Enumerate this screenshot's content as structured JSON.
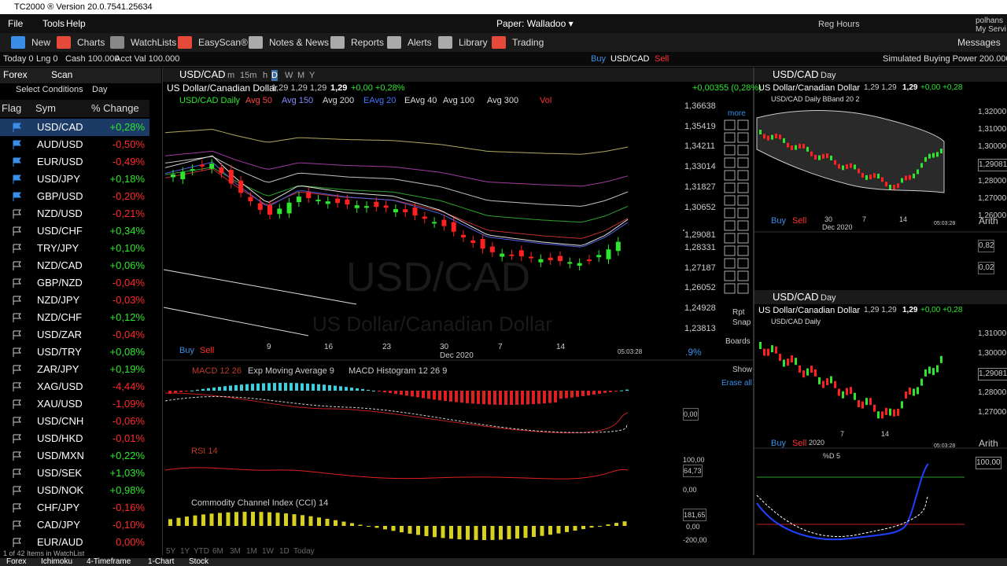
{
  "title_bar": {
    "app": "TC2000 ® Version 20.0.7541.25634"
  },
  "menu": {
    "items": [
      "File",
      "Tools",
      "Help"
    ],
    "account": "Paper: Walladoo ▾",
    "hours": "Reg Hours",
    "user": "polhans",
    "user_sub": "My Servi"
  },
  "toolbar": {
    "items": [
      "New",
      "Charts",
      "WatchLists",
      "EasyScan®",
      "Notes & News",
      "Reports",
      "Alerts",
      "Library",
      "Trading"
    ],
    "messages": "Messages"
  },
  "status": {
    "today": "Today 0",
    "long": "Lng 0",
    "cash": "Cash 100.000",
    "acct": "Acct Val 100.000",
    "buy": "Buy",
    "symbol": "USD/CAD",
    "sell": "Sell",
    "buying_power": "Simulated Buying Power 200.000"
  },
  "watchlist": {
    "list": "Forex",
    "scan": "Scan",
    "conditions": "Select Conditions",
    "period": "Day",
    "columns": [
      "Flag",
      "Sym",
      "% Change"
    ],
    "rows": [
      {
        "sym": "USD/CAD",
        "change": "+0,28%"
      },
      {
        "sym": "AUD/USD",
        "change": "-0,50%"
      },
      {
        "sym": "EUR/USD",
        "change": "-0,49%"
      },
      {
        "sym": "USD/JPY",
        "change": "+0,18%"
      },
      {
        "sym": "GBP/USD",
        "change": "-0,20%"
      },
      {
        "sym": "NZD/USD",
        "change": "-0,21%"
      },
      {
        "sym": "USD/CHF",
        "change": "+0,34%"
      },
      {
        "sym": "TRY/JPY",
        "change": "+0,10%"
      },
      {
        "sym": "NZD/CAD",
        "change": "+0,06%"
      },
      {
        "sym": "GBP/NZD",
        "change": "-0,04%"
      },
      {
        "sym": "NZD/JPY",
        "change": "-0,03%"
      },
      {
        "sym": "NZD/CHF",
        "change": "+0,12%"
      },
      {
        "sym": "USD/ZAR",
        "change": "-0,04%"
      },
      {
        "sym": "USD/TRY",
        "change": "+0,08%"
      },
      {
        "sym": "ZAR/JPY",
        "change": "+0,19%"
      },
      {
        "sym": "XAG/USD",
        "change": "-4,44%"
      },
      {
        "sym": "XAU/USD",
        "change": "-1,09%"
      },
      {
        "sym": "USD/CNH",
        "change": "-0,06%"
      },
      {
        "sym": "USD/HKD",
        "change": "-0,01%"
      },
      {
        "sym": "USD/MXN",
        "change": "+0,22%"
      },
      {
        "sym": "USD/SEK",
        "change": "+1,03%"
      },
      {
        "sym": "USD/NOK",
        "change": "+0,98%"
      },
      {
        "sym": "CHF/JPY",
        "change": "-0,16%"
      },
      {
        "sym": "CAD/JPY",
        "change": "-0,10%"
      },
      {
        "sym": "EUR/AUD",
        "change": "0,00%"
      }
    ],
    "footer": "1 of 42 Items in WatchList",
    "tabs": [
      "Forex",
      "Ichimoku",
      "4-Timeframe",
      "1-Chart",
      "Stock"
    ]
  },
  "main_chart": {
    "symbol": "USD/CAD",
    "intervals": [
      "m",
      "15m",
      "h",
      "D",
      "W",
      "M",
      "Y"
    ],
    "name": "US Dollar/Canadian Dollar",
    "quote": "1,29  1,29  1,29",
    "last": "1,29",
    "change": "+0,00  +0,28%",
    "net_change": "+0,00355 (0,28%)",
    "legend": [
      "USD/CAD Daily",
      "Avg 50",
      "Avg 150",
      "Avg 200",
      "EAvg 20",
      "EAvg 40",
      "Avg 100",
      "Avg 300",
      "Vol"
    ],
    "price_labels": [
      "1,36638",
      "1,35419",
      "1,34211",
      "1,33014",
      "1,31827",
      "1,30652",
      "1,29081",
      "1,28331",
      "1,27187",
      "1,26052",
      "1,24928",
      "1,23813"
    ],
    "dates": [
      "9",
      "16",
      "23",
      "30",
      "7",
      "14"
    ],
    "month": "Dec 2020",
    "watermark_symbol": "USD/CAD",
    "watermark_name": "US Dollar/Canadian Dollar",
    "time": "05:03:28",
    "buy": "Buy",
    "sell": "Sell",
    "percent": ".9%",
    "panes": [
      {
        "labels": [
          "MACD 12 26",
          "Exp Moving Average 9",
          "MACD Histogram 12 26 9"
        ],
        "scale": [
          "0,00"
        ]
      },
      {
        "labels": [
          "RSI 14"
        ],
        "scale": [
          "100,00",
          "64,73",
          "0,00"
        ]
      },
      {
        "labels": [
          "Commodity Channel Index (CCI) 14"
        ],
        "scale": [
          "181,65",
          "0,00",
          "-200,00"
        ]
      }
    ],
    "timeframes": [
      "5Y",
      "1Y",
      "YTD",
      "6M",
      "3M",
      "1M",
      "1W",
      "1D",
      "Today"
    ]
  },
  "tools": {
    "more": "more",
    "rpt": "Rpt",
    "snap": "Snap",
    "boards": "Boards",
    "show": "Show",
    "erase": "Erase all"
  },
  "right_top": {
    "symbol": "USD/CAD",
    "period": "Day",
    "name": "US Dollar/Canadian Dollar",
    "quote": "1,29  1,29",
    "last": "1,29",
    "change": "+0,00  +0,28",
    "legend": "USD/CAD Daily  BBand 20 2",
    "prices": [
      "1,32000",
      "1,31000",
      "1,30000",
      "1,29081",
      "1,28000",
      "1,27000",
      "1,26000"
    ],
    "dates": [
      "30",
      "7",
      "14"
    ],
    "month": "Dec 2020",
    "time": "05:03:28",
    "buy": "Buy",
    "sell": "Sell",
    "arith": "Arith",
    "sub_scale": [
      "0,82",
      "0,02"
    ]
  },
  "right_bottom": {
    "symbol": "USD/CAD",
    "period": "Day",
    "name": "US Dollar/Canadian Dollar",
    "quote": "1,29  1,29",
    "last": "1,29",
    "change": "+0,00  +0,28",
    "legend": "USD/CAD Daily",
    "prices": [
      "1,31000",
      "1,30000",
      "1,29081",
      "1,28000",
      "1,27000"
    ],
    "dates": [
      "7",
      "14"
    ],
    "year": "2020",
    "time": "05:03:28",
    "buy": "Buy",
    "sell": "Sell",
    "arith": "Arith",
    "sub_label": "%D 5",
    "sub_scale": [
      "100,00"
    ]
  }
}
